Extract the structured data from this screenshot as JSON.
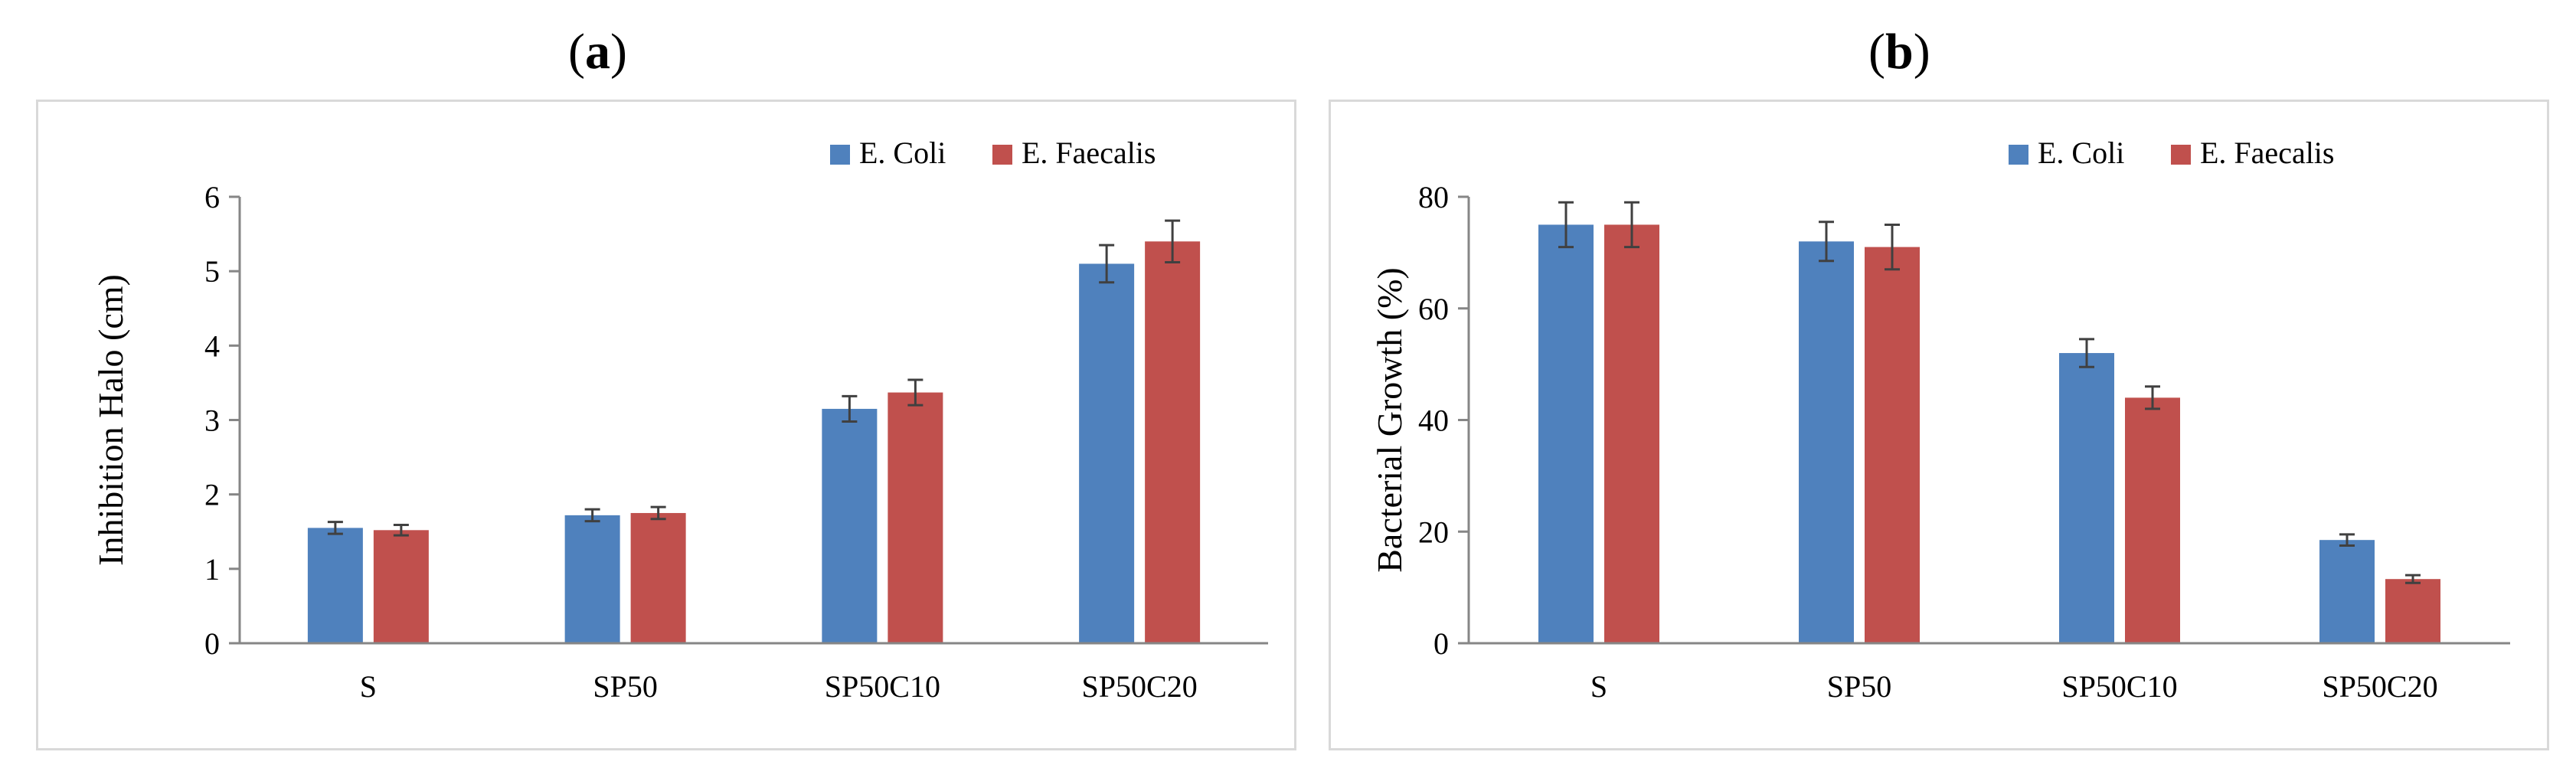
{
  "panels": [
    {
      "letter": "a"
    },
    {
      "letter": "b"
    }
  ],
  "colors": {
    "series0": "#4f81bd",
    "series1": "#c0504d",
    "axis": "#868686",
    "error": "#404040",
    "frame": "#d9d9d9"
  },
  "chart_data": [
    {
      "type": "bar",
      "title": "",
      "xlabel": "",
      "ylabel": "Inhibition Halo (cm)",
      "categories": [
        "S",
        "SP50",
        "SP50C10",
        "SP50C20"
      ],
      "ylim": [
        0,
        6
      ],
      "yticks": [
        0,
        1,
        2,
        3,
        4,
        5,
        6
      ],
      "grid": false,
      "legend_position": "top-right",
      "series": [
        {
          "name": "E. Coli",
          "values": [
            1.55,
            1.72,
            3.15,
            5.1
          ],
          "errors": [
            0.08,
            0.08,
            0.17,
            0.25
          ]
        },
        {
          "name": "E. Faecalis",
          "values": [
            1.52,
            1.75,
            3.37,
            5.4
          ],
          "errors": [
            0.07,
            0.08,
            0.17,
            0.28
          ]
        }
      ]
    },
    {
      "type": "bar",
      "title": "",
      "xlabel": "",
      "ylabel": "Bacterial Growth (%)",
      "categories": [
        "S",
        "SP50",
        "SP50C10",
        "SP50C20"
      ],
      "ylim": [
        0,
        80
      ],
      "yticks": [
        0,
        20,
        40,
        60,
        80
      ],
      "grid": false,
      "legend_position": "top-right",
      "series": [
        {
          "name": "E. Coli",
          "values": [
            75,
            72,
            52,
            18.5
          ],
          "errors": [
            4,
            3.5,
            2.5,
            1
          ]
        },
        {
          "name": "E. Faecalis",
          "values": [
            75,
            71,
            44,
            11.5
          ],
          "errors": [
            4,
            4,
            2,
            0.7
          ]
        }
      ]
    }
  ]
}
